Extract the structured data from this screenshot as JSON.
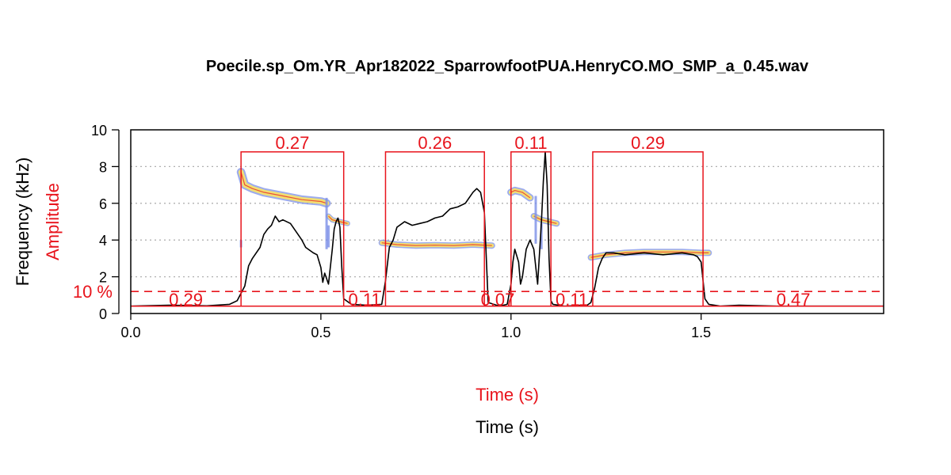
{
  "title": "Poecile.sp_Om.YR_Apr182022_SparrowfootPUA.HenryCO.MO_SMP_a_0.45.wav",
  "colors": {
    "accent": "#e8141c",
    "envelope": "#000000",
    "grid": "#b0b0b0",
    "spec_outer": "#7b8fe8",
    "spec_mid": "#f2df73",
    "spec_core": "#e8141c"
  },
  "chart_data": {
    "type": "line",
    "xlabel_top": "Time (s)",
    "xlabel_bottom": "Time (s)",
    "ylabel": "Frequency (kHz)",
    "ylabel2": "Amplitude",
    "xlim": [
      0,
      1.98
    ],
    "ylim": [
      0,
      10
    ],
    "x_ticks": [
      0.0,
      0.5,
      1.0,
      1.5
    ],
    "x_tick_labels": [
      "0.0",
      "0.5",
      "1.0",
      "1.5"
    ],
    "y_ticks": [
      0,
      2,
      4,
      6,
      8,
      10
    ],
    "y_tick_labels": [
      "0",
      "2",
      "4",
      "6",
      "8",
      "10"
    ],
    "grid": "horizontal dotted at 2, 4, 6, 8",
    "threshold": {
      "value": 1.2,
      "label": "10 %"
    },
    "segments": [
      {
        "type": "signal",
        "start": 0.29,
        "end": 0.56,
        "label": "0.27"
      },
      {
        "type": "signal",
        "start": 0.67,
        "end": 0.93,
        "label": "0.26"
      },
      {
        "type": "signal",
        "start": 1.0,
        "end": 1.105,
        "label": "0.11"
      },
      {
        "type": "signal",
        "start": 1.215,
        "end": 1.505,
        "label": "0.29"
      },
      {
        "type": "gap",
        "start": 0.0,
        "end": 0.29,
        "label": "0.29"
      },
      {
        "type": "gap",
        "start": 0.56,
        "end": 0.67,
        "label": "0.11"
      },
      {
        "type": "gap",
        "start": 0.93,
        "end": 1.0,
        "label": "0.07"
      },
      {
        "type": "gap",
        "start": 1.105,
        "end": 1.215,
        "label": "0.11"
      },
      {
        "type": "gap",
        "start": 1.505,
        "end": 1.98,
        "label": "0.47"
      }
    ],
    "signal_level": 8.8,
    "gap_level": 0.4,
    "envelope": {
      "x": [
        0.0,
        0.1,
        0.2,
        0.26,
        0.28,
        0.3,
        0.31,
        0.32,
        0.34,
        0.35,
        0.36,
        0.37,
        0.38,
        0.39,
        0.4,
        0.42,
        0.44,
        0.45,
        0.46,
        0.48,
        0.49,
        0.5,
        0.505,
        0.51,
        0.52,
        0.53,
        0.535,
        0.54,
        0.545,
        0.55,
        0.555,
        0.56,
        0.58,
        0.62,
        0.66,
        0.67,
        0.68,
        0.69,
        0.7,
        0.72,
        0.74,
        0.76,
        0.78,
        0.8,
        0.82,
        0.84,
        0.86,
        0.88,
        0.89,
        0.9,
        0.91,
        0.92,
        0.93,
        0.94,
        0.97,
        0.99,
        1.0,
        1.005,
        1.01,
        1.02,
        1.025,
        1.03,
        1.04,
        1.05,
        1.06,
        1.07,
        1.08,
        1.085,
        1.09,
        1.095,
        1.1,
        1.105,
        1.11,
        1.14,
        1.2,
        1.21,
        1.22,
        1.23,
        1.24,
        1.25,
        1.27,
        1.3,
        1.35,
        1.4,
        1.45,
        1.48,
        1.49,
        1.5,
        1.505,
        1.51,
        1.52,
        1.55,
        1.6,
        1.7,
        1.98
      ],
      "y": [
        0.4,
        0.45,
        0.42,
        0.5,
        0.7,
        1.5,
        2.6,
        3.0,
        3.6,
        4.3,
        4.6,
        4.8,
        5.3,
        5.0,
        5.1,
        4.9,
        4.3,
        4.0,
        3.6,
        3.3,
        3.2,
        2.5,
        1.7,
        2.2,
        1.6,
        3.5,
        4.6,
        5.0,
        5.2,
        4.7,
        2.5,
        0.8,
        0.5,
        0.45,
        0.5,
        1.8,
        3.6,
        4.0,
        4.7,
        5.0,
        4.8,
        4.9,
        5.0,
        5.2,
        5.3,
        5.7,
        5.8,
        6.0,
        6.3,
        6.6,
        6.8,
        6.6,
        5.5,
        0.6,
        0.4,
        0.5,
        1.6,
        2.8,
        3.5,
        2.8,
        1.6,
        2.0,
        3.5,
        4.0,
        3.5,
        1.6,
        5.0,
        7.2,
        8.8,
        7.0,
        3.0,
        0.7,
        0.5,
        0.4,
        0.45,
        0.6,
        1.4,
        2.5,
        3.0,
        3.3,
        3.3,
        3.2,
        3.3,
        3.2,
        3.3,
        3.2,
        3.1,
        2.8,
        1.8,
        0.8,
        0.5,
        0.4,
        0.45,
        0.4,
        0.4
      ]
    },
    "spectrogram_tracks": [
      {
        "x": [
          0.29,
          0.3,
          0.32,
          0.35,
          0.4,
          0.45,
          0.5,
          0.515
        ],
        "y": [
          7.7,
          7.0,
          6.8,
          6.6,
          6.4,
          6.2,
          6.1,
          6.0
        ],
        "width": 0.4
      },
      {
        "x": [
          0.52,
          0.53,
          0.55,
          0.57
        ],
        "y": [
          5.3,
          5.1,
          5.0,
          4.9
        ],
        "width": 0.25
      },
      {
        "x": [
          0.66,
          0.7,
          0.75,
          0.8,
          0.85,
          0.9,
          0.95
        ],
        "y": [
          3.85,
          3.75,
          3.7,
          3.72,
          3.7,
          3.75,
          3.7
        ],
        "width": 0.3
      },
      {
        "x": [
          1.0,
          1.01,
          1.03,
          1.05
        ],
        "y": [
          6.6,
          6.7,
          6.6,
          6.3
        ],
        "width": 0.35
      },
      {
        "x": [
          1.06,
          1.08,
          1.1,
          1.12
        ],
        "y": [
          5.3,
          5.1,
          5.0,
          4.9
        ],
        "width": 0.3
      },
      {
        "x": [
          1.21,
          1.25,
          1.3,
          1.35,
          1.4,
          1.45,
          1.5,
          1.52
        ],
        "y": [
          3.05,
          3.2,
          3.3,
          3.35,
          3.35,
          3.35,
          3.3,
          3.3
        ],
        "width": 0.3
      }
    ],
    "spectrogram_streaks": [
      {
        "x": 0.29,
        "y0": 3.6,
        "y1": 4.0
      },
      {
        "x": 0.515,
        "y0": 3.5,
        "y1": 6.3
      },
      {
        "x": 0.52,
        "y0": 3.6,
        "y1": 4.8
      },
      {
        "x": 1.065,
        "y0": 3.8,
        "y1": 6.4
      },
      {
        "x": 1.08,
        "y0": 3.5,
        "y1": 4.9
      }
    ]
  }
}
